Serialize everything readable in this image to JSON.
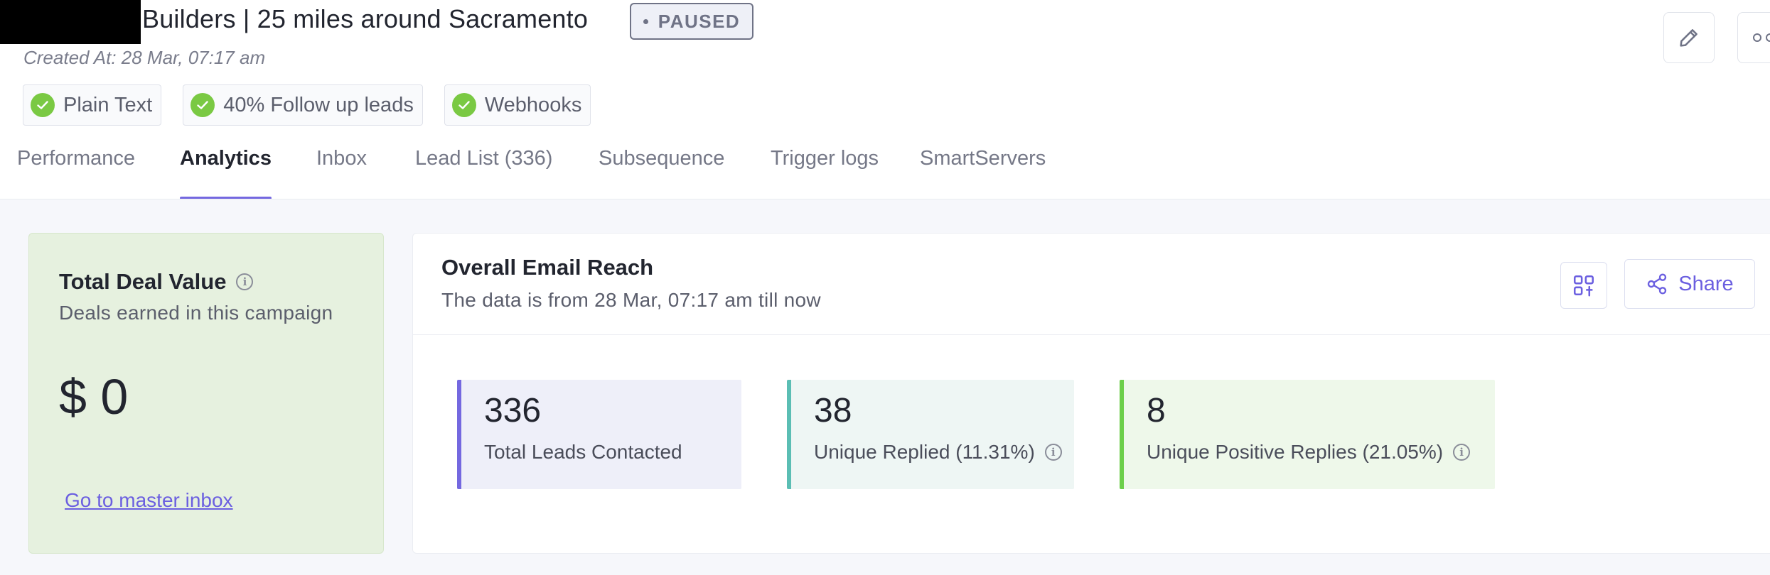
{
  "header": {
    "title": "Builders | 25 miles around Sacramento",
    "status": "PAUSED",
    "created_at": "Created At: 28 Mar, 07:17 am",
    "features": [
      {
        "label": "Plain Text"
      },
      {
        "label": "40% Follow up leads"
      },
      {
        "label": "Webhooks"
      }
    ]
  },
  "tabs": [
    {
      "label": "Performance"
    },
    {
      "label": "Analytics",
      "active": true
    },
    {
      "label": "Inbox"
    },
    {
      "label": "Lead List (336)"
    },
    {
      "label": "Subsequence"
    },
    {
      "label": "Trigger logs"
    },
    {
      "label": "SmartServers"
    }
  ],
  "deal_card": {
    "title": "Total Deal Value",
    "subtitle": "Deals earned in this campaign",
    "value": "$ 0",
    "link": "Go to master inbox"
  },
  "reach_card": {
    "title": "Overall Email Reach",
    "subtitle": "The data is from 28 Mar, 07:17 am till now",
    "share_label": "Share",
    "stats": [
      {
        "value": "336",
        "label": "Total Leads Contacted"
      },
      {
        "value": "38",
        "label": "Unique Replied (11.31%)"
      },
      {
        "value": "8",
        "label": "Unique Positive Replies (21.05%)"
      }
    ]
  },
  "colors": {
    "accent": "#7468e0",
    "success": "#7ac943",
    "teal": "#5bbeb4"
  }
}
